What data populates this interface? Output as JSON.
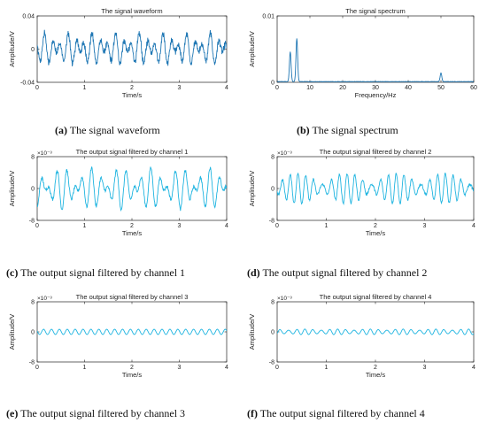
{
  "panels": [
    {
      "id": "a",
      "caption_label": "(a)",
      "caption_text": " The signal waveform",
      "chart_data": {
        "type": "line",
        "title": "The signal waveform",
        "xlabel": "Time/s",
        "ylabel": "Amplitude/V",
        "xlim": [
          0,
          4
        ],
        "ylim": [
          -0.04,
          0.04
        ],
        "xticks": [
          "0",
          "1",
          "2",
          "3",
          "4"
        ],
        "yticks": [
          "-0.04",
          "0",
          "0.04"
        ],
        "exponent": "",
        "color": "#1f77b4",
        "grid": false,
        "signal": {
          "components": [
            {
              "freq_hz": 4,
              "amplitude": 0.008
            },
            {
              "freq_hz": 6,
              "amplitude": 0.011
            },
            {
              "freq_hz": 50,
              "amplitude": 0.002
            }
          ],
          "noise_amplitude": 0.003,
          "samples": 600
        }
      }
    },
    {
      "id": "b",
      "caption_label": "(b)",
      "caption_text": " The signal spectrum",
      "chart_data": {
        "type": "line",
        "title": "The signal spectrum",
        "xlabel": "Frequency/Hz",
        "ylabel": "Amplitude/V",
        "xlim": [
          0,
          60
        ],
        "ylim": [
          0,
          0.01
        ],
        "xticks": [
          "0",
          "10",
          "20",
          "30",
          "40",
          "50",
          "60"
        ],
        "yticks": [
          "0",
          "0.01"
        ],
        "exponent": "",
        "color": "#1f77b4",
        "grid": false,
        "peaks": [
          {
            "x": 4,
            "y": 0.0045
          },
          {
            "x": 6,
            "y": 0.0065
          },
          {
            "x": 50,
            "y": 0.0013
          }
        ]
      }
    },
    {
      "id": "c",
      "caption_label": "(c)",
      "caption_text": " The output signal filtered by channel 1",
      "chart_data": {
        "type": "line",
        "title": "The output signal filtered by channel 1",
        "xlabel": "Time/s",
        "ylabel": "Amplitude/V",
        "xlim": [
          0,
          4
        ],
        "ylim": [
          -8,
          8
        ],
        "xticks": [
          "0",
          "1",
          "2",
          "3",
          "4"
        ],
        "yticks": [
          "-8",
          "0",
          "8"
        ],
        "exponent": "×10⁻³",
        "color": "#1eb4e0",
        "grid": false,
        "signal": {
          "components": [
            {
              "freq_hz": 4,
              "amplitude": 2.6
            },
            {
              "freq_hz": 5.6,
              "amplitude": 2.6
            }
          ],
          "noise_amplitude": 0.4,
          "samples": 500
        }
      }
    },
    {
      "id": "d",
      "caption_label": "(d)",
      "caption_text": " The output signal filtered by channel 2",
      "chart_data": {
        "type": "line",
        "title": "The output signal filtered by channel 2",
        "xlabel": "Time/s",
        "ylabel": "Amplitude/V",
        "xlim": [
          0,
          4
        ],
        "ylim": [
          -8,
          8
        ],
        "xticks": [
          "0",
          "1",
          "2",
          "3",
          "4"
        ],
        "yticks": [
          "-8",
          "0",
          "8"
        ],
        "exponent": "×10⁻³",
        "color": "#1eb4e0",
        "grid": false,
        "signal": {
          "components": [
            {
              "freq_hz": 6,
              "amplitude": 2.4
            },
            {
              "freq_hz": 7,
              "amplitude": 1.4
            }
          ],
          "noise_amplitude": 0.3,
          "samples": 500
        }
      }
    },
    {
      "id": "e",
      "caption_label": "(e)",
      "caption_text": " The output signal filtered by channel 3",
      "chart_data": {
        "type": "line",
        "title": "The output signal filtered by channel 3",
        "xlabel": "Time/s",
        "ylabel": "Amplitude/V",
        "xlim": [
          0,
          4
        ],
        "ylim": [
          -8,
          8
        ],
        "xticks": [
          "0",
          "1",
          "2",
          "3",
          "4"
        ],
        "yticks": [
          "-8",
          "0",
          "8"
        ],
        "exponent": "×10⁻³",
        "color": "#1eb4e0",
        "grid": false,
        "signal": {
          "components": [
            {
              "freq_hz": 6,
              "amplitude": 0.7
            }
          ],
          "noise_amplitude": 0.0,
          "samples": 500
        }
      }
    },
    {
      "id": "f",
      "caption_label": "(f)",
      "caption_text": " The output signal filtered by channel 4",
      "chart_data": {
        "type": "line",
        "title": "The output signal filtered by channel 4",
        "xlabel": "Time/s",
        "ylabel": "Amplitude/V",
        "xlim": [
          0,
          4
        ],
        "ylim": [
          -8,
          8
        ],
        "xticks": [
          "0",
          "1",
          "2",
          "3",
          "4"
        ],
        "yticks": [
          "-8",
          "0",
          "8"
        ],
        "exponent": "×10⁻³",
        "color": "#1eb4e0",
        "grid": false,
        "signal": {
          "components": [
            {
              "freq_hz": 6,
              "amplitude": 0.6
            },
            {
              "freq_hz": 7.5,
              "amplitude": 0.15
            }
          ],
          "noise_amplitude": 0.0,
          "samples": 500
        }
      }
    }
  ]
}
